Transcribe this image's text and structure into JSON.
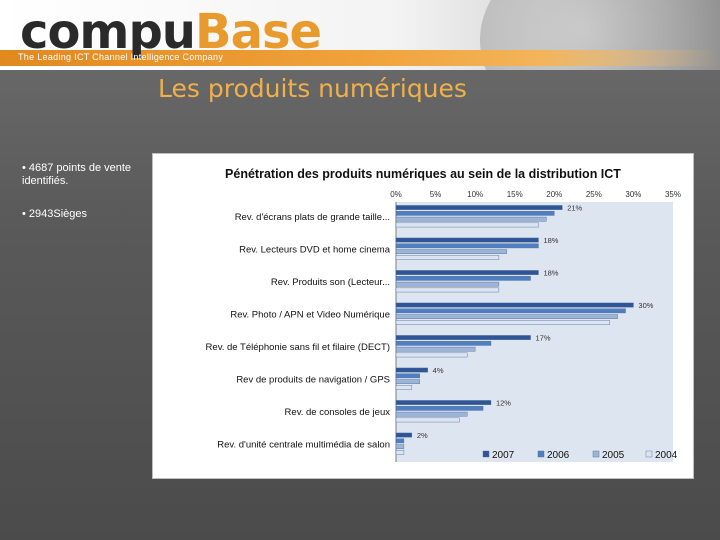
{
  "header": {
    "logo_main": "compu",
    "logo_accent": "Base",
    "tagline": "The Leading ICT Channel Intelligence Company"
  },
  "slide": {
    "title": "Les produits numériques",
    "bullets": [
      "• 4687 points de vente identifiés.",
      "• 2943Sièges"
    ]
  },
  "chart_data": {
    "type": "bar",
    "orientation": "horizontal",
    "title": "Pénétration des produits numériques au sein de la distribution ICT",
    "categories": [
      "Rev. d'écrans plats de grande taille...",
      "Rev. Lecteurs DVD et home cinema",
      "Rev. Produits son (Lecteur...",
      "Rev. Photo / APN et Video Numérique",
      "Rev. de Téléphonie sans fil et filaire (DECT)",
      "Rev de produits de navigation / GPS",
      "Rev. de consoles de jeux",
      "Rev. d'unité centrale multimédia de salon"
    ],
    "series": [
      {
        "name": "2007",
        "color": "#2f5597",
        "values": [
          21,
          18,
          18,
          30,
          17,
          4,
          12,
          2
        ]
      },
      {
        "name": "2006",
        "color": "#4f7fc0",
        "values": [
          20,
          18,
          17,
          29,
          12,
          3,
          11,
          1
        ]
      },
      {
        "name": "2005",
        "color": "#9db4d6",
        "values": [
          19,
          14,
          13,
          28,
          10,
          3,
          9,
          1
        ]
      },
      {
        "name": "2004",
        "color": "#dbe4f0",
        "values": [
          18,
          13,
          13,
          27,
          9,
          2,
          8,
          1
        ]
      }
    ],
    "data_labels": [
      "21%",
      "18%",
      "18%",
      "30%",
      "17%",
      "4%",
      "12%",
      "2%"
    ],
    "x_ticks": [
      "0%",
      "5%",
      "10%",
      "15%",
      "20%",
      "25%",
      "30%",
      "35%"
    ],
    "xlim": [
      0,
      35
    ],
    "tick_position": "top",
    "legend_position": "bottom-right",
    "grid": false
  }
}
